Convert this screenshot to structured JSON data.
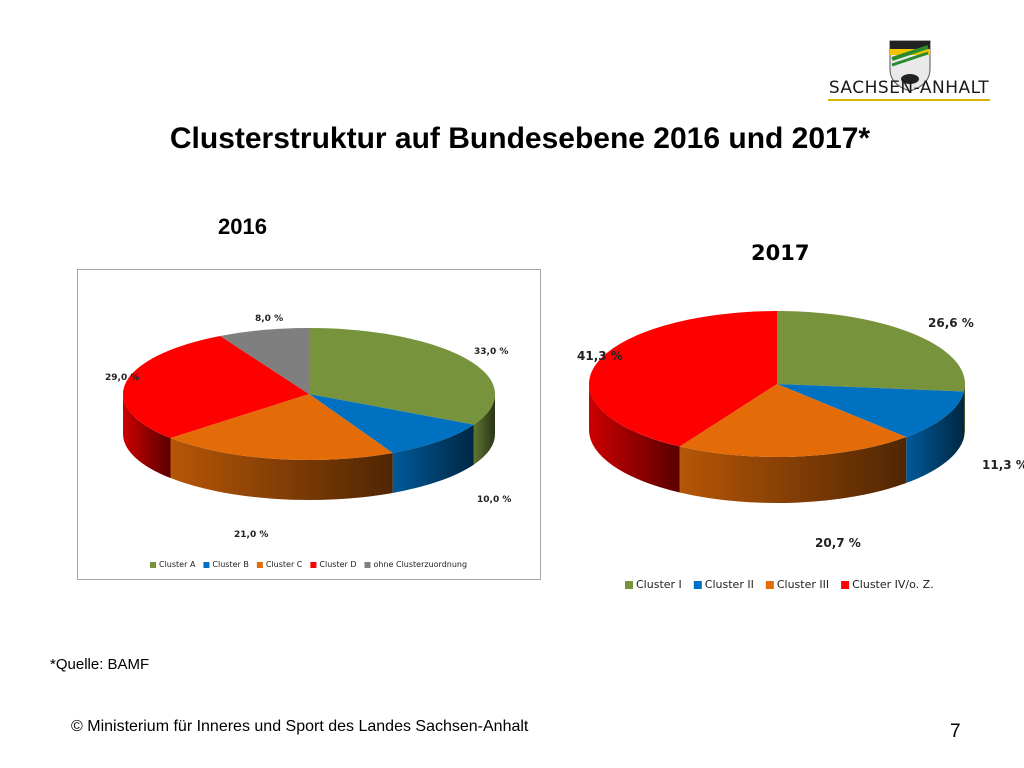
{
  "title": "Clusterstruktur auf Bundesebene 2016 und 2017*",
  "logo": {
    "text": "SACHSEN-ANHALT",
    "icon": "coat-of-arms-icon"
  },
  "source_note": "*Quelle: BAMF",
  "footer": "© Ministerium für Inneres und Sport des Landes Sachsen-Anhalt",
  "page_number": "7",
  "chart_data": [
    {
      "type": "pie",
      "title": "2016",
      "categories": [
        "Cluster A",
        "Cluster B",
        "Cluster C",
        "Cluster D",
        "ohne Clusterzuordnung"
      ],
      "values": [
        33.0,
        10.0,
        21.0,
        29.0,
        8.0
      ],
      "labels": [
        "33,0 %",
        "10,0 %",
        "21,0 %",
        "29,0 %",
        "8,0 %"
      ],
      "colors": [
        "#77933c",
        "#0070c0",
        "#e36c09",
        "#ff0000",
        "#7f7f7f"
      ],
      "legend": "bottom",
      "style": "3d"
    },
    {
      "type": "pie",
      "title": "2017",
      "categories": [
        "Cluster I",
        "Cluster II",
        "Cluster III",
        "Cluster IV/o. Z."
      ],
      "values": [
        26.6,
        11.3,
        20.7,
        41.3
      ],
      "labels": [
        "26,6 %",
        "11,3 %",
        "20,7 %",
        "41,3 %"
      ],
      "colors": [
        "#77933c",
        "#0070c0",
        "#e36c09",
        "#ff0000"
      ],
      "legend": "bottom",
      "style": "3d"
    }
  ]
}
